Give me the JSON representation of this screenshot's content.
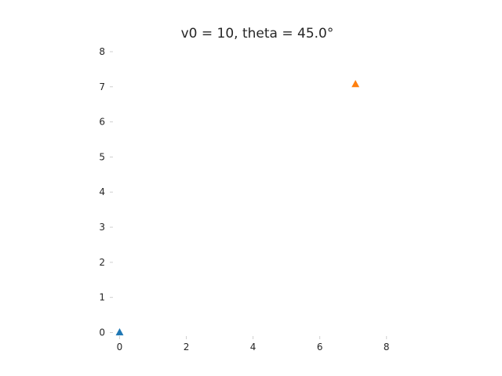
{
  "chart_data": {
    "type": "scatter",
    "title": "v0 = 10, theta = 45.0°",
    "xlabel": "",
    "ylabel": "",
    "xlim": [
      -0.2,
      8.5
    ],
    "ylim": [
      -0.1,
      8.2
    ],
    "grid": false,
    "x_ticks": [
      0,
      2,
      4,
      6,
      8
    ],
    "y_ticks": [
      0,
      1,
      2,
      3,
      4,
      5,
      6,
      7,
      8
    ],
    "series": [
      {
        "marker": "triangle",
        "color": "#1f77b4",
        "points": [
          {
            "x": 0,
            "y": 0
          }
        ]
      },
      {
        "marker": "triangle",
        "color": "#ff7f0e",
        "points": [
          {
            "x": 7.07,
            "y": 7.07
          }
        ]
      }
    ]
  }
}
